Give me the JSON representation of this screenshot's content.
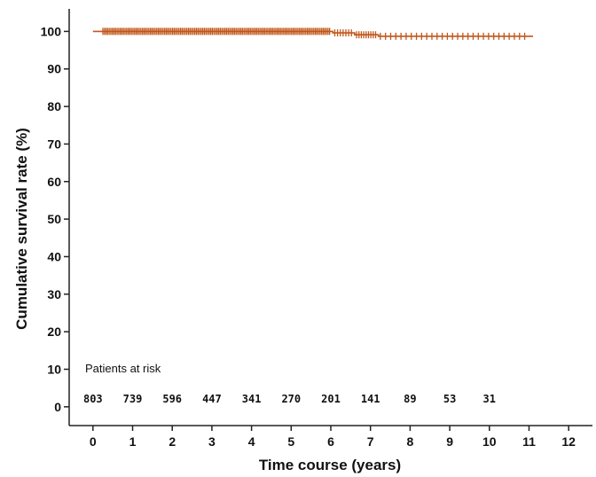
{
  "chart_data": {
    "type": "line",
    "title": "",
    "xlabel": "Time course (years)",
    "ylabel": "Cumulative survival rate (%)",
    "xlim": [
      -0.6,
      12.6
    ],
    "ylim": [
      -5,
      106
    ],
    "xticks": [
      0,
      1,
      2,
      3,
      4,
      5,
      6,
      7,
      8,
      9,
      10,
      11,
      12
    ],
    "yticks": [
      0,
      10,
      20,
      30,
      40,
      50,
      60,
      70,
      80,
      90,
      100
    ],
    "grid": false,
    "series": [
      {
        "color": "#c0571a",
        "step_x": [
          0,
          6.05,
          6.05,
          6.6,
          6.6,
          7.2,
          7.2,
          11.1
        ],
        "step_y": [
          100,
          100,
          99.6,
          99.6,
          99.1,
          99.1,
          98.7,
          98.7
        ],
        "censor_ranges": [
          {
            "from": 0.25,
            "to": 6.0,
            "y": 100,
            "step": 0.04
          },
          {
            "from": 6.1,
            "to": 6.55,
            "y": 99.6,
            "step": 0.07
          },
          {
            "from": 6.65,
            "to": 7.15,
            "y": 99.1,
            "step": 0.06
          },
          {
            "from": 7.25,
            "to": 11.0,
            "y": 98.7,
            "step": 0.13
          }
        ]
      }
    ],
    "risk_table": {
      "title": "Patients at risk",
      "times": [
        0,
        1,
        2,
        3,
        4,
        5,
        6,
        7,
        8,
        9,
        10
      ],
      "values": [
        "803",
        "739",
        "596",
        "447",
        "341",
        "270",
        "201",
        "141",
        "89",
        "53",
        "31"
      ]
    }
  }
}
